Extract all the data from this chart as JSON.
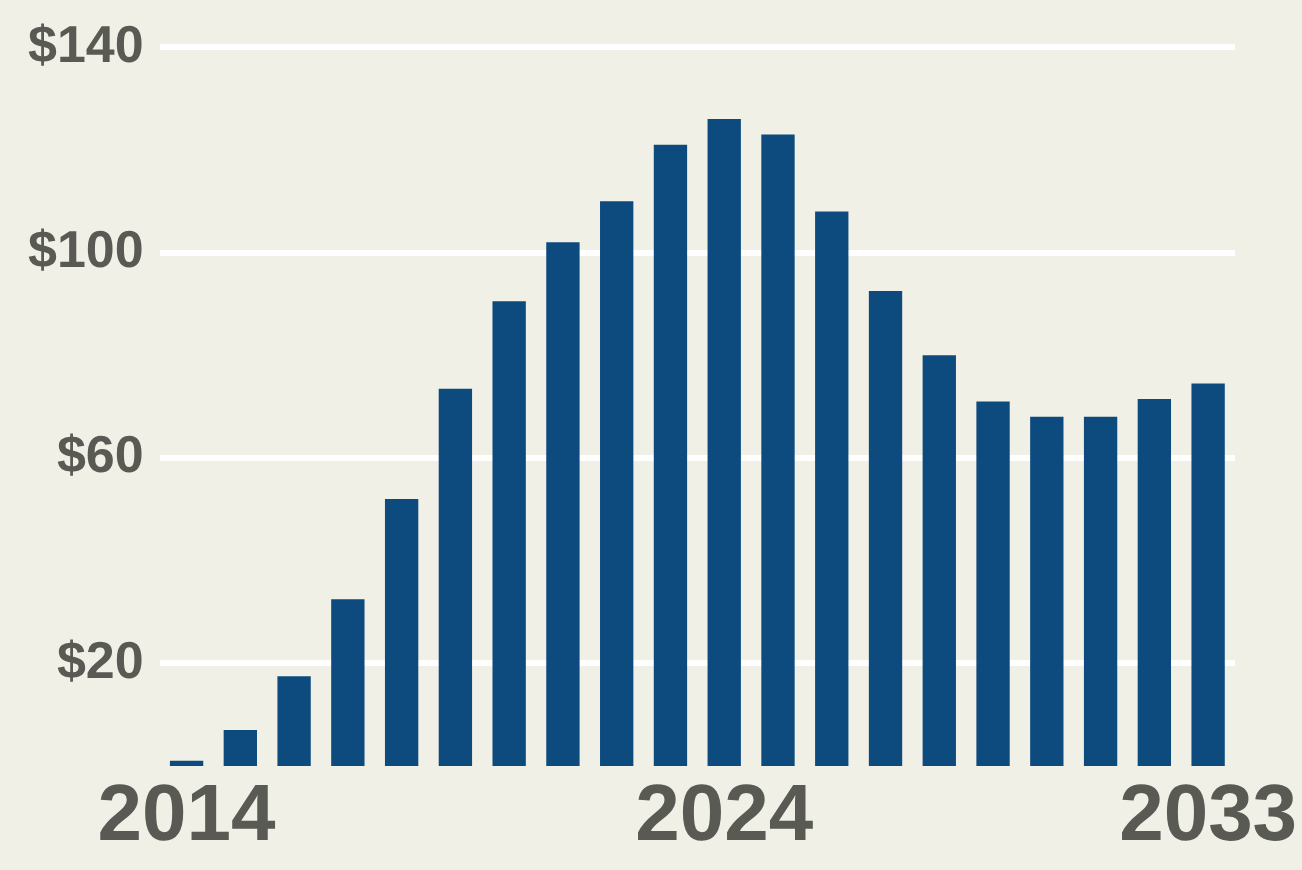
{
  "chart_data": {
    "type": "bar",
    "categories": [
      "2014",
      null,
      null,
      null,
      null,
      null,
      null,
      null,
      null,
      null,
      "2024",
      null,
      null,
      null,
      null,
      null,
      null,
      null,
      null,
      "2033"
    ],
    "values": [
      1,
      7,
      17.5,
      32.5,
      52,
      73.5,
      90.5,
      102,
      110,
      121,
      126,
      123,
      108,
      92.5,
      80,
      71,
      68,
      68,
      71.5,
      74.5
    ],
    "color": "#0d4a7e",
    "ylim": [
      0,
      140
    ],
    "yticks": [
      {
        "value": 20,
        "label": "$20"
      },
      {
        "value": 60,
        "label": "$60"
      },
      {
        "value": 100,
        "label": "$100"
      },
      {
        "value": 140,
        "label": "$140"
      }
    ],
    "grid": "y",
    "legend": false
  }
}
